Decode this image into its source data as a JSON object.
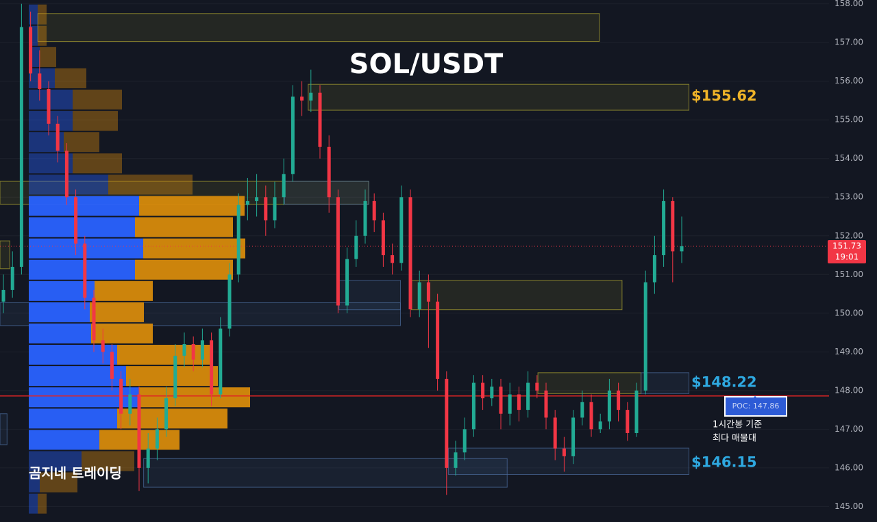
{
  "chart_data": {
    "type": "candlestick",
    "title": "SOL/USDT",
    "watermark": "곰지네 트레이딩",
    "up_color": "#22ab94",
    "down_color": "#f23645",
    "ylim": [
      144.6,
      158.1
    ],
    "yticks": [
      {
        "value": 145,
        "label": "145.00"
      },
      {
        "value": 146,
        "label": "146.00"
      },
      {
        "value": 147,
        "label": "147.00"
      },
      {
        "value": 148,
        "label": "148.00"
      },
      {
        "value": 149,
        "label": "149.00"
      },
      {
        "value": 150,
        "label": "150.00"
      },
      {
        "value": 151,
        "label": "151.00"
      },
      {
        "value": 152,
        "label": "152.00"
      },
      {
        "value": 153,
        "label": "153.00"
      },
      {
        "value": 154,
        "label": "154.00"
      },
      {
        "value": 155,
        "label": "155.00"
      },
      {
        "value": 156,
        "label": "156.00"
      },
      {
        "value": 157,
        "label": "157.00"
      },
      {
        "value": 158,
        "label": "158.00"
      }
    ],
    "grid": true,
    "open": [
      150.3,
      150.6,
      151.2,
      157.4,
      156.2,
      155.8,
      154.9,
      154.2,
      153.0,
      151.8,
      150.4,
      149.3,
      149.0,
      148.3,
      147.4,
      147.9,
      146.0,
      146.5,
      147.0,
      147.8,
      148.9,
      149.2,
      148.8,
      149.3,
      147.9,
      149.6,
      151.0,
      152.8,
      152.9,
      153.0,
      152.4,
      153.0,
      153.6,
      155.6,
      155.5,
      155.7,
      154.3,
      153.0,
      150.2,
      151.4,
      152.0,
      152.9,
      152.4,
      151.5,
      151.3,
      153.0,
      150.1,
      150.8,
      150.3,
      148.3,
      146.0,
      146.4,
      147.0,
      148.2,
      147.8,
      148.1,
      147.4,
      147.9,
      147.5,
      148.2,
      148.0,
      147.3,
      146.5,
      146.3,
      147.3,
      147.7,
      147.0,
      147.2,
      148.0,
      147.5,
      146.9,
      148.0,
      150.8,
      151.5,
      152.9,
      151.6
    ],
    "high": [
      151.0,
      151.6,
      158.0,
      157.8,
      156.8,
      156.0,
      155.1,
      154.4,
      153.2,
      152.0,
      150.6,
      149.6,
      149.2,
      148.5,
      148.3,
      148.1,
      146.9,
      147.3,
      148.1,
      149.2,
      149.5,
      149.4,
      149.6,
      149.5,
      149.9,
      151.3,
      153.1,
      153.5,
      153.6,
      153.3,
      153.4,
      154.0,
      155.9,
      156.0,
      156.3,
      155.9,
      154.6,
      153.2,
      151.7,
      152.4,
      153.2,
      153.1,
      152.6,
      151.8,
      153.3,
      153.2,
      151.1,
      151.0,
      150.5,
      148.5,
      146.7,
      147.3,
      148.4,
      148.4,
      148.3,
      148.3,
      148.2,
      148.1,
      148.5,
      148.4,
      148.2,
      147.5,
      146.8,
      147.5,
      148.0,
      147.9,
      147.4,
      148.3,
      148.2,
      147.7,
      148.2,
      151.1,
      152.0,
      153.2,
      153.0,
      152.5
    ],
    "low": [
      150.0,
      150.4,
      151.0,
      156.0,
      155.5,
      154.6,
      153.9,
      152.8,
      151.5,
      150.1,
      149.0,
      148.7,
      148.0,
      147.0,
      147.1,
      145.4,
      145.6,
      146.2,
      146.8,
      147.6,
      148.6,
      148.5,
      148.6,
      147.6,
      147.8,
      149.4,
      150.8,
      152.4,
      152.5,
      152.0,
      152.2,
      152.8,
      153.4,
      155.1,
      155.2,
      154.0,
      152.6,
      150.0,
      150.0,
      151.2,
      151.8,
      152.1,
      151.2,
      151.0,
      151.1,
      149.9,
      149.9,
      149.1,
      148.0,
      145.3,
      145.8,
      146.2,
      146.8,
      147.5,
      147.6,
      147.0,
      147.1,
      147.2,
      147.3,
      147.8,
      147.0,
      146.2,
      145.9,
      146.1,
      147.1,
      146.8,
      146.9,
      147.0,
      147.2,
      146.7,
      146.8,
      147.9,
      150.5,
      151.2,
      150.8,
      151.3
    ],
    "close": [
      150.6,
      151.2,
      157.4,
      156.2,
      155.8,
      154.9,
      154.2,
      153.0,
      151.8,
      150.4,
      149.3,
      149.0,
      148.3,
      147.4,
      147.9,
      146.0,
      146.5,
      147.0,
      147.8,
      148.9,
      149.2,
      148.8,
      149.3,
      147.9,
      149.6,
      151.0,
      152.8,
      152.9,
      153.0,
      152.4,
      153.0,
      153.6,
      155.6,
      155.5,
      155.7,
      154.3,
      153.0,
      150.2,
      151.4,
      152.0,
      152.9,
      152.4,
      151.5,
      151.3,
      153.0,
      150.1,
      150.8,
      150.3,
      148.3,
      146.0,
      146.4,
      147.0,
      148.2,
      147.8,
      148.1,
      147.4,
      147.9,
      147.5,
      148.2,
      148.0,
      147.3,
      146.5,
      146.3,
      147.3,
      147.7,
      147.0,
      147.2,
      148.0,
      147.5,
      146.9,
      148.0,
      150.8,
      151.5,
      152.9,
      151.6,
      151.73
    ],
    "volume_profile": {
      "bins": [
        158.0,
        157.45,
        156.9,
        156.35,
        155.8,
        155.25,
        154.7,
        154.15,
        153.6,
        153.05,
        152.5,
        151.95,
        151.4,
        150.85,
        150.3,
        149.75,
        149.2,
        148.65,
        148.1,
        147.55,
        147.0,
        146.45,
        145.9,
        145.35,
        144.8
      ],
      "buy": [
        13,
        13,
        16,
        38,
        64,
        64,
        51,
        64,
        116,
        161,
        155,
        167,
        155,
        96,
        89,
        91,
        129,
        142,
        161,
        129,
        103,
        77,
        16,
        13
      ],
      "sell": [
        13,
        13,
        24,
        46,
        72,
        66,
        52,
        72,
        123,
        154,
        143,
        149,
        143,
        85,
        79,
        90,
        139,
        134,
        162,
        161,
        117,
        77,
        55,
        13
      ],
      "buy_color": "#2962ff",
      "sell_color": "#d68a0c",
      "value_area": [
        146.45,
        153.05
      ]
    },
    "zones": [
      {
        "top": 157.75,
        "bottom": 157.03,
        "start": 3.8,
        "end": 65.9,
        "color": "#a8a030"
      },
      {
        "top": 155.92,
        "bottom": 155.25,
        "start": 33.7,
        "end": 75.8,
        "color": "#a8a030"
      },
      {
        "top": 153.41,
        "bottom": 152.82,
        "start": -0.4,
        "end": 40.4,
        "color": "#a8a030"
      },
      {
        "top": 150.85,
        "bottom": 150.09,
        "start": 45.1,
        "end": 68.4,
        "color": "#a8a030"
      },
      {
        "top": 148.46,
        "bottom": 147.92,
        "start": 59.1,
        "end": 70.5,
        "color": "#a8a030"
      },
      {
        "top": 151.87,
        "bottom": 151.15,
        "start": -0.4,
        "end": 0.7,
        "color": "#a8a030"
      },
      {
        "top": 153.41,
        "bottom": 152.82,
        "start": 31.1,
        "end": 40.4,
        "color": "#4a6a9a"
      },
      {
        "top": 150.27,
        "bottom": 149.68,
        "start": -0.4,
        "end": 43.9,
        "color": "#4a6a9a"
      },
      {
        "top": 150.85,
        "bottom": 150.09,
        "start": 37.1,
        "end": 43.9,
        "color": "#4a6a9a"
      },
      {
        "top": 148.46,
        "bottom": 147.92,
        "start": 70.5,
        "end": 75.8,
        "color": "#4a6a9a"
      },
      {
        "top": 146.24,
        "bottom": 145.5,
        "start": 15.5,
        "end": 55.7,
        "color": "#4a6a9a"
      },
      {
        "top": 146.51,
        "bottom": 145.83,
        "start": 49.2,
        "end": 75.8,
        "color": "#4a6a9a"
      },
      {
        "top": 147.4,
        "bottom": 146.6,
        "start": -0.4,
        "end": 0.4,
        "color": "#4a6a9a"
      }
    ],
    "price_labels": [
      {
        "value": 155.62,
        "label": "$155.62",
        "color": "#f0b428"
      },
      {
        "value": 148.22,
        "label": "$148.22",
        "color": "#2ea8e0"
      },
      {
        "value": 146.15,
        "label": "$146.15",
        "color": "#2ea8e0"
      }
    ],
    "poc": {
      "value": 147.86,
      "label": "POC: 147.86",
      "color": "#e02424"
    },
    "poc_note": [
      "1시간봉 기준",
      "최다 매물대"
    ],
    "last_price": {
      "value": 151.73,
      "label": "151.73",
      "time": "19:01"
    }
  }
}
